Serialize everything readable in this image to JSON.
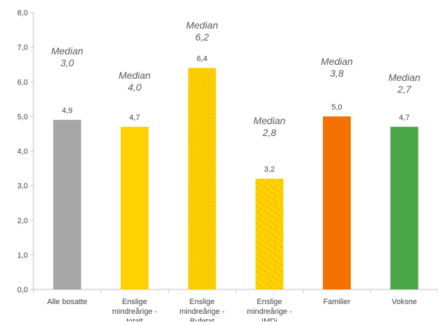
{
  "chart_data": {
    "type": "bar",
    "title": "",
    "xlabel": "",
    "ylabel": "",
    "ylim": [
      0,
      8
    ],
    "yticks": [
      "0,0",
      "1,0",
      "2,0",
      "3,0",
      "4,0",
      "5,0",
      "6,0",
      "7,0",
      "8,0"
    ],
    "grid": false,
    "categories": [
      [
        "Alle bosatte"
      ],
      [
        "Enslige",
        "mindreårige -",
        "totalt"
      ],
      [
        "Enslige",
        "mindreårige -",
        "Bufetat"
      ],
      [
        "Enslige",
        "mindreårige -",
        "IMDi"
      ],
      [
        "Familier"
      ],
      [
        "Voksne"
      ]
    ],
    "values": [
      4.9,
      4.7,
      6.4,
      3.2,
      5.0,
      4.7
    ],
    "value_labels": [
      "4,9",
      "4,7",
      "6,4",
      "3,2",
      "5,0",
      "4,7"
    ],
    "median_word": "Median",
    "medians": [
      "3,0",
      "4,0",
      "6,2",
      "2,8",
      "3,8",
      "2,7"
    ],
    "colors": [
      "#A6A6A6",
      "#FFD100",
      "#FFD100",
      "#FFD100",
      "#F47100",
      "#4AA748"
    ],
    "patterned": [
      false,
      false,
      true,
      true,
      false,
      false
    ]
  }
}
